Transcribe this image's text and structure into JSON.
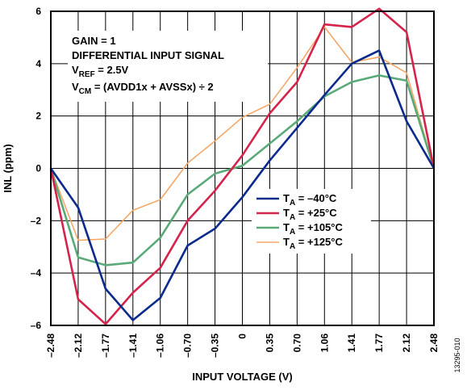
{
  "chart_data": {
    "type": "line",
    "xlabel": "INPUT VOLTAGE (V)",
    "ylabel": "INL (ppm)",
    "x": [
      -2.48,
      -2.12,
      -1.77,
      -1.41,
      -1.06,
      -0.7,
      -0.35,
      0,
      0.35,
      0.7,
      1.06,
      1.41,
      1.77,
      2.12,
      2.48
    ],
    "x_tick_labels": [
      "–2.48",
      "–2.12",
      "–1.77",
      "–1.41",
      "–1.06",
      "–0.70",
      "–0.35",
      "0",
      "0.35",
      "0.70",
      "1.06",
      "1.41",
      "1.77",
      "2.12",
      "2.48"
    ],
    "y_ticks": [
      -6,
      -4,
      -2,
      0,
      2,
      4,
      6
    ],
    "y_tick_labels": [
      "–6",
      "–4",
      "–2",
      "0",
      "2",
      "4",
      "6"
    ],
    "ylim": [
      -6,
      6
    ],
    "grid": true,
    "legend_position": "center-right",
    "annotations": {
      "gain": "GAIN = 1",
      "signal": "DIFFERENTIAL INPUT SIGNAL",
      "vref_main": "V",
      "vref_sub": "REF",
      "vref_rest": " = 2.5V",
      "vcm_main": "V",
      "vcm_sub": "CM",
      "vcm_rest": " = (AVDD1x + AVSSx) ÷ 2"
    },
    "series": [
      {
        "legend_main": "T",
        "legend_sub": "A",
        "legend_rest": " = –40°C",
        "color": "#0a2a8c",
        "values": [
          0,
          -1.5,
          -4.6,
          -5.8,
          -4.95,
          -2.95,
          -2.3,
          -1.1,
          0.3,
          1.55,
          2.8,
          4.0,
          4.5,
          1.8,
          0
        ]
      },
      {
        "legend_main": "T",
        "legend_sub": "A",
        "legend_rest": " = +25°C",
        "color": "#d4244b",
        "values": [
          0,
          -5.0,
          -5.95,
          -4.75,
          -3.8,
          -2.0,
          -0.85,
          0.5,
          2.1,
          3.3,
          5.5,
          5.4,
          6.1,
          5.2,
          0
        ]
      },
      {
        "legend_main": "T",
        "legend_sub": "A",
        "legend_rest": " = +105°C",
        "color": "#5aaa78",
        "values": [
          0,
          -3.4,
          -3.7,
          -3.6,
          -2.65,
          -1.0,
          -0.2,
          0.1,
          0.95,
          1.8,
          2.75,
          3.3,
          3.55,
          3.35,
          0
        ]
      },
      {
        "legend_main": "T",
        "legend_sub": "A",
        "legend_rest": " = +125°C",
        "color": "#f3a868",
        "values": [
          0,
          -2.75,
          -2.7,
          -1.6,
          -1.2,
          0.2,
          1.05,
          1.95,
          2.45,
          3.85,
          5.4,
          4.05,
          4.25,
          3.65,
          0
        ]
      }
    ],
    "figure_id": "13295-010"
  }
}
